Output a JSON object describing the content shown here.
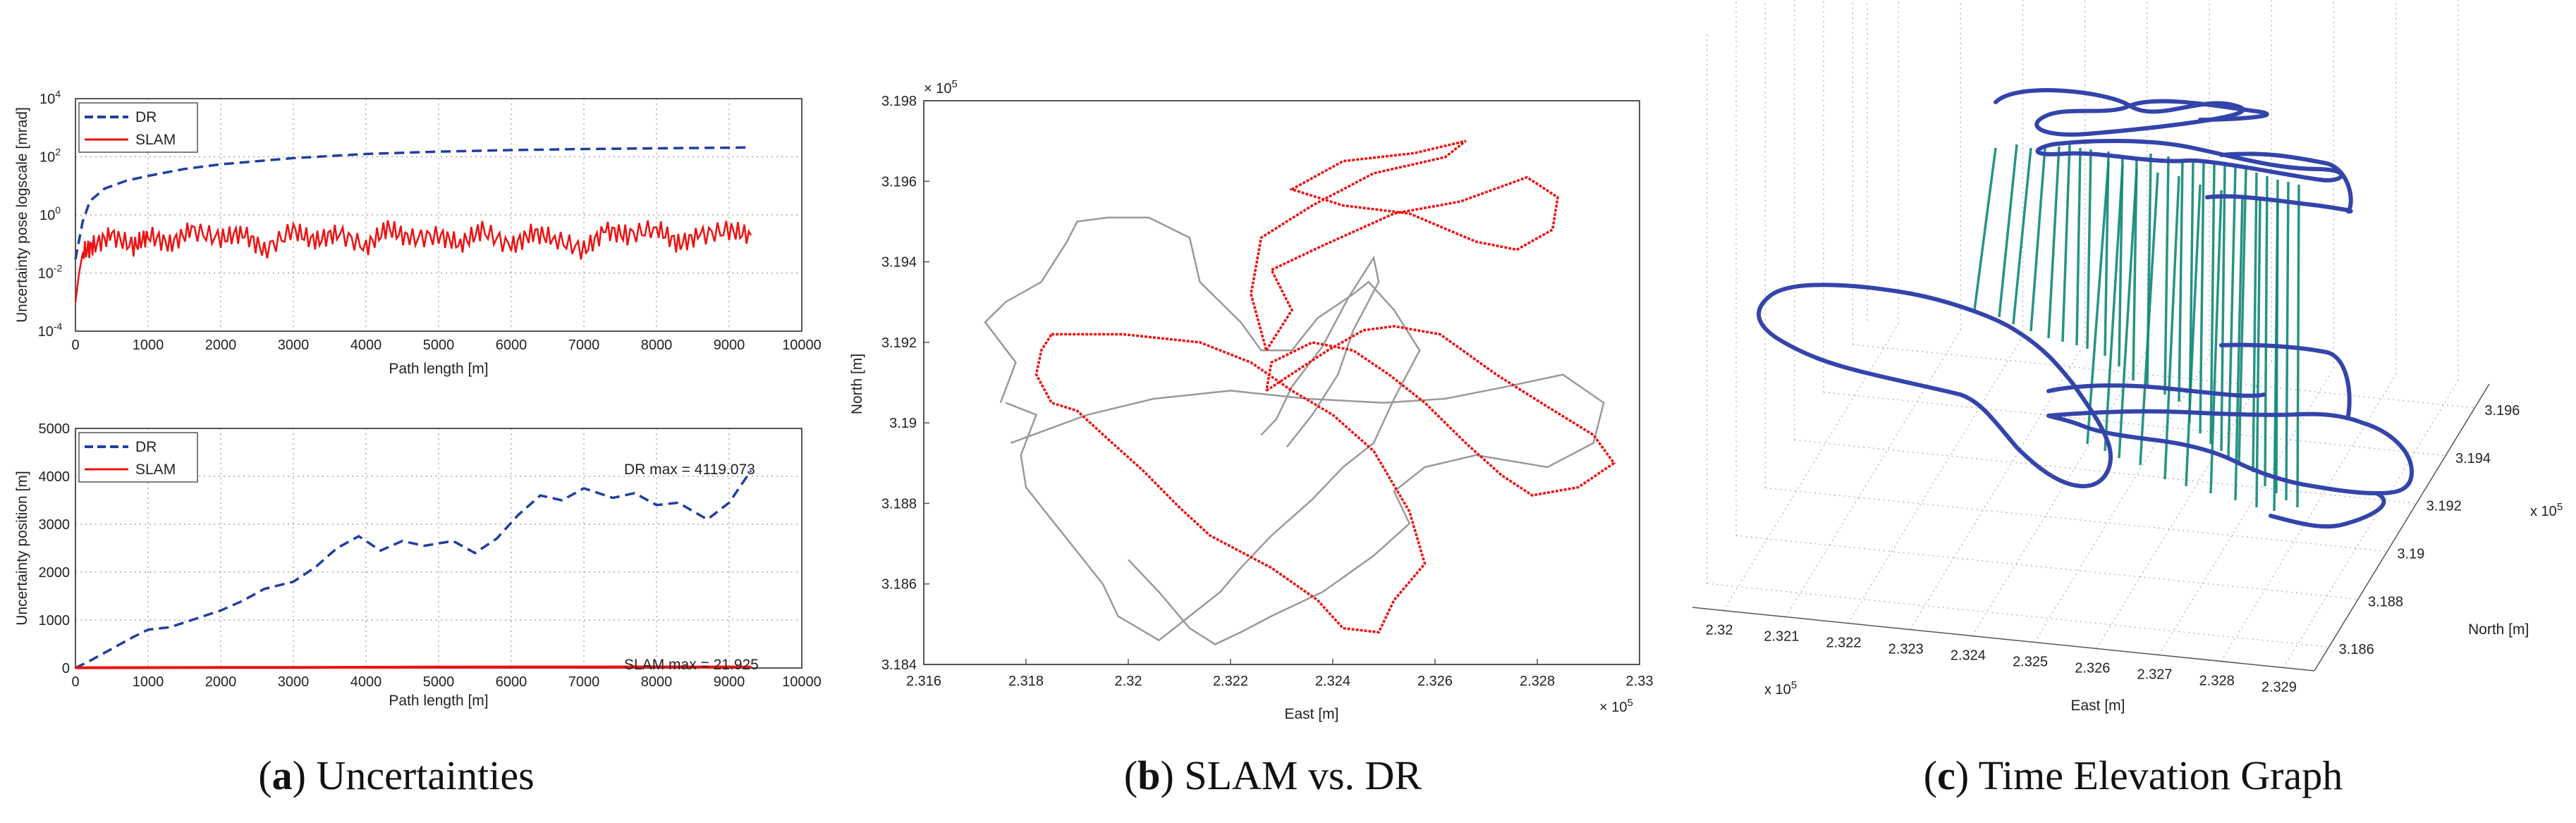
{
  "captions": [
    {
      "letter": "a",
      "text": "Uncertainties"
    },
    {
      "letter": "b",
      "text": "SLAM vs. DR"
    },
    {
      "letter": "c",
      "text": "Time Elevation Graph"
    }
  ],
  "colors": {
    "dr": "#1f3f9f",
    "slam": "#ee1111",
    "gray": "#999999",
    "tower": "#118877",
    "track3d": "#3344aa"
  },
  "chart_data": [
    {
      "id": "a-top",
      "type": "line",
      "title": "",
      "xlabel": "Path length [m]",
      "ylabel": "Uncertainty  pose logscale [mrad]",
      "xlim": [
        0,
        10000
      ],
      "ylim": [
        0.0001,
        10000
      ],
      "yscale": "log",
      "xticks": [
        "0",
        "1000",
        "2000",
        "3000",
        "4000",
        "5000",
        "6000",
        "7000",
        "8000",
        "9000",
        "10000"
      ],
      "yticks": [
        {
          "base": "10",
          "exp": "-4"
        },
        {
          "base": "10",
          "exp": "-2"
        },
        {
          "base": "10",
          "exp": "0"
        },
        {
          "base": "10",
          "exp": "2"
        },
        {
          "base": "10",
          "exp": "4"
        }
      ],
      "grid": true,
      "legend_position": "top-left",
      "series": [
        {
          "name": "DR",
          "style": "dashed",
          "x": [
            0,
            100,
            200,
            400,
            700,
            1000,
            1500,
            2000,
            3000,
            4000,
            5000,
            6000,
            7000,
            8000,
            9000,
            9300
          ],
          "y": [
            0.03,
            0.6,
            3,
            8,
            15,
            22,
            38,
            55,
            90,
            125,
            150,
            170,
            185,
            195,
            205,
            210
          ]
        },
        {
          "name": "SLAM",
          "style": "solid",
          "x": [
            0,
            50,
            100,
            250,
            500,
            800,
            1000,
            1300,
            1600,
            2000,
            2300,
            2600,
            3000,
            3300,
            3600,
            4000,
            4300,
            4600,
            5000,
            5300,
            5600,
            6000,
            6300,
            6600,
            7000,
            7300,
            7600,
            8000,
            8300,
            8600,
            9000,
            9300
          ],
          "y": [
            0.001,
            0.01,
            0.05,
            0.09,
            0.2,
            0.08,
            0.2,
            0.1,
            0.3,
            0.15,
            0.25,
            0.06,
            0.3,
            0.12,
            0.25,
            0.08,
            0.35,
            0.15,
            0.2,
            0.1,
            0.3,
            0.08,
            0.25,
            0.15,
            0.06,
            0.3,
            0.2,
            0.35,
            0.1,
            0.2,
            0.3,
            0.2
          ]
        }
      ]
    },
    {
      "id": "a-bottom",
      "type": "line",
      "title": "",
      "xlabel": "Path length [m]",
      "ylabel": "Uncertainty position [m]",
      "xlim": [
        0,
        10000
      ],
      "ylim": [
        0,
        5000
      ],
      "xticks": [
        "0",
        "1000",
        "2000",
        "3000",
        "4000",
        "5000",
        "6000",
        "7000",
        "8000",
        "9000",
        "10000"
      ],
      "yticks": [
        "0",
        "1000",
        "2000",
        "3000",
        "4000",
        "5000"
      ],
      "grid": true,
      "legend_position": "top-left",
      "annotations": [
        "DR max = 4119.073",
        "SLAM max = 21.925"
      ],
      "series": [
        {
          "name": "DR",
          "style": "dashed",
          "x": [
            0,
            200,
            500,
            800,
            1000,
            1300,
            1600,
            2000,
            2300,
            2600,
            3000,
            3300,
            3600,
            3900,
            4200,
            4500,
            4800,
            5200,
            5500,
            5800,
            6100,
            6400,
            6700,
            7000,
            7400,
            7700,
            8000,
            8300,
            8700,
            9000,
            9300
          ],
          "y": [
            0,
            150,
            400,
            650,
            800,
            850,
            1000,
            1200,
            1400,
            1650,
            1800,
            2100,
            2500,
            2750,
            2450,
            2650,
            2550,
            2650,
            2400,
            2700,
            3200,
            3600,
            3500,
            3750,
            3550,
            3650,
            3400,
            3450,
            3100,
            3450,
            4119
          ]
        },
        {
          "name": "SLAM",
          "style": "solid",
          "x": [
            0,
            1000,
            2000,
            3000,
            4000,
            5000,
            6000,
            7000,
            8000,
            9000,
            9300
          ],
          "y": [
            5,
            8,
            10,
            12,
            15,
            18,
            20,
            21,
            21.9,
            20,
            18
          ]
        }
      ]
    },
    {
      "id": "b",
      "type": "line",
      "title": "",
      "xlabel": "East [m]",
      "ylabel": "North [m]",
      "x_multiplier": "× 10",
      "x_multiplier_exp": "5",
      "y_multiplier": "× 10",
      "y_multiplier_exp": "5",
      "xlim": [
        2.316,
        2.33
      ],
      "ylim": [
        3.184,
        3.198
      ],
      "xticks": [
        "2.316",
        "2.318",
        "2.32",
        "2.322",
        "2.324",
        "2.326",
        "2.328",
        "2.33"
      ],
      "yticks": [
        "3.184",
        "3.186",
        "3.188",
        "3.19",
        "3.192",
        "3.194",
        "3.196",
        "3.198"
      ],
      "grid": false,
      "series": [
        {
          "name": "",
          "color_role": "gray",
          "x": [
            2.3175,
            2.3178,
            2.3172,
            2.3176,
            2.3183,
            2.3188,
            2.319,
            2.3196,
            2.3204,
            2.3212,
            2.3214,
            2.3222,
            2.3226,
            2.3232,
            2.3237,
            2.3244,
            2.3247,
            2.3252,
            2.3257,
            2.3252,
            2.3248,
            2.3242,
            2.3236,
            2.3228,
            2.3222,
            2.3218,
            2.3212,
            2.3206,
            2.3198,
            2.3195,
            2.319,
            2.3185,
            2.318,
            2.3179,
            2.3182,
            2.3176
          ],
          "y": [
            3.1905,
            3.1915,
            3.1925,
            3.193,
            3.1935,
            3.1945,
            3.195,
            3.1951,
            3.1951,
            3.1946,
            3.1935,
            3.1925,
            3.1918,
            3.1918,
            3.1926,
            3.1932,
            3.1935,
            3.1928,
            3.1918,
            3.1906,
            3.1895,
            3.1889,
            3.1881,
            3.1872,
            3.1864,
            3.1858,
            3.1852,
            3.1846,
            3.1852,
            3.186,
            3.1868,
            3.1876,
            3.1884,
            3.1892,
            3.1902,
            3.1905
          ]
        },
        {
          "name": "",
          "color_role": "gray",
          "x": [
            2.3177,
            2.3192,
            2.3205,
            2.322,
            2.3235,
            2.325,
            2.3262,
            2.3274,
            2.3285,
            2.3293,
            2.3291,
            2.3282,
            2.3268,
            2.3258,
            2.3252,
            2.3255,
            2.3248,
            2.3238,
            2.3228,
            2.3222,
            2.3217,
            2.3212,
            2.3206,
            2.32
          ],
          "y": [
            3.1895,
            3.1902,
            3.1906,
            3.1908,
            3.1906,
            3.1905,
            3.1906,
            3.1909,
            3.1912,
            3.1905,
            3.1895,
            3.1889,
            3.1892,
            3.1889,
            3.1883,
            3.1875,
            3.1867,
            3.1858,
            3.1852,
            3.1848,
            3.1845,
            3.1849,
            3.1858,
            3.1866
          ]
        },
        {
          "name": "",
          "color_role": "gray",
          "x": [
            2.3231,
            2.3236,
            2.3241,
            2.3244,
            2.3249,
            2.3248,
            2.3243,
            2.3238,
            2.3232,
            2.3229,
            2.3226
          ],
          "y": [
            3.1894,
            3.1902,
            3.1912,
            3.1923,
            3.1935,
            3.1941,
            3.1931,
            3.1919,
            3.1909,
            3.1901,
            3.1897
          ]
        },
        {
          "name": "",
          "color_role": "slam",
          "x": [
            2.3185,
            2.3199,
            2.3214,
            2.3224,
            2.3232,
            2.324,
            2.3248,
            2.3255,
            2.3258,
            2.3252,
            2.3249,
            2.3242,
            2.3237,
            2.3228,
            2.3222,
            2.3216,
            2.321,
            2.3203,
            2.3196,
            2.319,
            2.3185,
            2.3182,
            2.3183,
            2.3185
          ],
          "y": [
            3.1922,
            3.1922,
            3.192,
            3.1915,
            3.1908,
            3.1902,
            3.1893,
            3.1878,
            3.1865,
            3.1856,
            3.1848,
            3.1849,
            3.1856,
            3.1864,
            3.1868,
            3.1872,
            3.1879,
            3.1888,
            3.1896,
            3.1903,
            3.1905,
            3.1912,
            3.1918,
            3.1922
          ]
        },
        {
          "name": "",
          "color_role": "slam",
          "x": [
            2.3227,
            2.3239,
            2.3246,
            2.3252,
            2.3261,
            2.3272,
            2.3282,
            2.3291,
            2.3295,
            2.3288,
            2.3279,
            2.3273,
            2.3266,
            2.3258,
            2.3251,
            2.3244,
            2.3236,
            2.3228,
            2.3227
          ],
          "y": [
            3.1908,
            3.1918,
            3.1923,
            3.1924,
            3.1922,
            3.1912,
            3.1904,
            3.1897,
            3.189,
            3.1884,
            3.1882,
            3.1887,
            3.1895,
            3.1905,
            3.1912,
            3.1918,
            3.192,
            3.1915,
            3.1908
          ]
        },
        {
          "name": "",
          "color_role": "slam",
          "x": [
            2.3227,
            2.3232,
            2.3228,
            2.3238,
            2.3252,
            2.3265,
            2.3278,
            2.3284,
            2.3283,
            2.3276,
            2.3268,
            2.3255,
            2.3242,
            2.3232,
            2.3242,
            2.3256,
            2.3266,
            2.3262,
            2.3248,
            2.3236,
            2.3226,
            2.3224,
            2.3227
          ],
          "y": [
            3.1918,
            3.1928,
            3.1938,
            3.1944,
            3.1952,
            3.1955,
            3.1961,
            3.1956,
            3.1948,
            3.1943,
            3.1945,
            3.1952,
            3.1954,
            3.1958,
            3.1965,
            3.1967,
            3.197,
            3.1966,
            3.1962,
            3.1954,
            3.1946,
            3.1932,
            3.1918
          ]
        }
      ]
    },
    {
      "id": "c",
      "type": "line",
      "title": "",
      "projection": "3d",
      "xlabel": "East [m]",
      "ylabel": "North [m]",
      "x_multiplier": "x 10",
      "x_multiplier_exp": "5",
      "y_multiplier": "x 10",
      "y_multiplier_exp": "5",
      "xlim": [
        2.3195,
        2.3295
      ],
      "ylim": [
        3.185,
        3.197
      ],
      "xticks": [
        "2.32",
        "2.321",
        "2.322",
        "2.323",
        "2.324",
        "2.325",
        "2.326",
        "2.327",
        "2.328",
        "2.329"
      ],
      "yticks": [
        "3.186",
        "3.188",
        "3.19",
        "3.192",
        "3.194",
        "3.196"
      ],
      "grid": true,
      "series": [
        {
          "name": "",
          "color_role": "track3d",
          "style": "track"
        },
        {
          "name": "",
          "color_role": "tower",
          "style": "vertical-lines"
        }
      ]
    }
  ]
}
